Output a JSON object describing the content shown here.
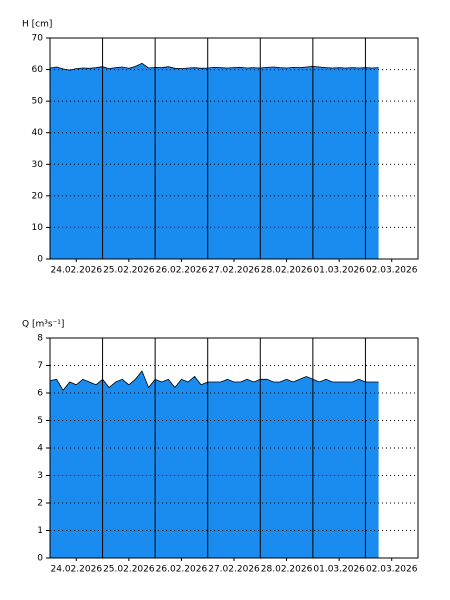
{
  "chart_data": [
    {
      "type": "area",
      "ylabel": "H [cm]",
      "color": "#1a8cf0",
      "xlim": [
        0,
        7
      ],
      "ylim": [
        0,
        70
      ],
      "yticks": [
        0,
        10,
        20,
        30,
        40,
        50,
        60,
        70
      ],
      "xticks": [
        {
          "value": 0.5,
          "label": "24.02.2026"
        },
        {
          "value": 1.5,
          "label": "25.02.2026"
        },
        {
          "value": 2.5,
          "label": "26.02.2026"
        },
        {
          "value": 3.5,
          "label": "27.02.2026"
        },
        {
          "value": 4.5,
          "label": "28.02.2026"
        },
        {
          "value": 5.5,
          "label": "01.03.2026"
        },
        {
          "value": 6.5,
          "label": "02.03.2026"
        }
      ],
      "day_lines": [
        1,
        2,
        3,
        4,
        5,
        6
      ],
      "grid": true,
      "x": [
        0,
        0.125,
        0.25,
        0.375,
        0.5,
        0.625,
        0.75,
        0.875,
        1,
        1.125,
        1.25,
        1.375,
        1.5,
        1.625,
        1.75,
        1.875,
        2,
        2.125,
        2.25,
        2.375,
        2.5,
        2.625,
        2.75,
        2.875,
        3,
        3.125,
        3.25,
        3.375,
        3.5,
        3.625,
        3.75,
        3.875,
        4,
        4.125,
        4.25,
        4.375,
        4.5,
        4.625,
        4.75,
        4.875,
        5,
        5.125,
        5.25,
        5.375,
        5.5,
        5.625,
        5.75,
        5.875,
        6,
        6.125,
        6.25
      ],
      "values": [
        60.5,
        60.8,
        60.2,
        59.8,
        60.3,
        60.5,
        60.4,
        60.6,
        60.9,
        60.3,
        60.6,
        60.8,
        60.4,
        61.0,
        62.0,
        60.5,
        60.7,
        60.6,
        60.9,
        60.4,
        60.3,
        60.5,
        60.6,
        60.4,
        60.5,
        60.7,
        60.6,
        60.5,
        60.6,
        60.7,
        60.5,
        60.6,
        60.5,
        60.7,
        60.8,
        60.6,
        60.5,
        60.7,
        60.6,
        60.8,
        61.0,
        60.8,
        60.6,
        60.5,
        60.6,
        60.5,
        60.6,
        60.5,
        60.6,
        60.5,
        60.6
      ]
    },
    {
      "type": "area",
      "ylabel": "Q [m³s⁻¹]",
      "color": "#1a8cf0",
      "xlim": [
        0,
        7
      ],
      "ylim": [
        0,
        8
      ],
      "yticks": [
        0,
        1,
        2,
        3,
        4,
        5,
        6,
        7,
        8
      ],
      "xticks": [
        {
          "value": 0.5,
          "label": "24.02.2026"
        },
        {
          "value": 1.5,
          "label": "25.02.2026"
        },
        {
          "value": 2.5,
          "label": "26.02.2026"
        },
        {
          "value": 3.5,
          "label": "27.02.2026"
        },
        {
          "value": 4.5,
          "label": "28.02.2026"
        },
        {
          "value": 5.5,
          "label": "01.03.2026"
        },
        {
          "value": 6.5,
          "label": "02.03.2026"
        }
      ],
      "day_lines": [
        1,
        2,
        3,
        4,
        5,
        6
      ],
      "grid": true,
      "x": [
        0,
        0.125,
        0.25,
        0.375,
        0.5,
        0.625,
        0.75,
        0.875,
        1,
        1.125,
        1.25,
        1.375,
        1.5,
        1.625,
        1.75,
        1.875,
        2,
        2.125,
        2.25,
        2.375,
        2.5,
        2.625,
        2.75,
        2.875,
        3,
        3.125,
        3.25,
        3.375,
        3.5,
        3.625,
        3.75,
        3.875,
        4,
        4.125,
        4.25,
        4.375,
        4.5,
        4.625,
        4.75,
        4.875,
        5,
        5.125,
        5.25,
        5.375,
        5.5,
        5.625,
        5.75,
        5.875,
        6,
        6.125,
        6.25
      ],
      "values": [
        6.45,
        6.5,
        6.1,
        6.4,
        6.3,
        6.5,
        6.4,
        6.3,
        6.5,
        6.2,
        6.4,
        6.5,
        6.3,
        6.5,
        6.8,
        6.2,
        6.5,
        6.4,
        6.5,
        6.2,
        6.5,
        6.4,
        6.6,
        6.3,
        6.4,
        6.4,
        6.4,
        6.5,
        6.4,
        6.4,
        6.5,
        6.4,
        6.5,
        6.5,
        6.4,
        6.4,
        6.5,
        6.4,
        6.5,
        6.6,
        6.5,
        6.4,
        6.5,
        6.4,
        6.4,
        6.4,
        6.4,
        6.5,
        6.4,
        6.4,
        6.4
      ]
    }
  ]
}
